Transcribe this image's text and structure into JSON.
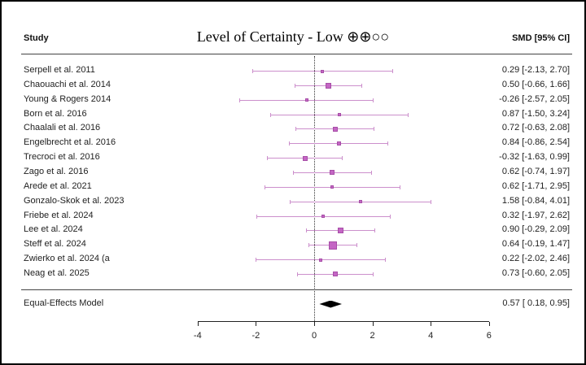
{
  "header": {
    "study_column_label": "Study",
    "title": "Level of Certainty - Low ⊕⊕○○",
    "effect_column_label": "SMD [95% CI]"
  },
  "chart_data": {
    "type": "forest",
    "title": "Level of Certainty - Low ⊕⊕○○",
    "effect_measure": "SMD [95% CI]",
    "xlim": [
      -4.3,
      6.3
    ],
    "x_ticks": [
      -4,
      -2,
      0,
      2,
      4,
      6
    ],
    "zero_reference_line": 0,
    "studies": [
      {
        "name": "Serpell et al. 2011",
        "smd": 0.29,
        "ci_low": -2.13,
        "ci_high": 2.7,
        "label": "0.29 [-2.13, 2.70]",
        "marker_px": 4
      },
      {
        "name": "Chaouachi et al. 2014",
        "smd": 0.5,
        "ci_low": -0.66,
        "ci_high": 1.66,
        "label": "0.50 [-0.66, 1.66]",
        "marker_px": 7
      },
      {
        "name": "Young & Rogers 2014",
        "smd": -0.26,
        "ci_low": -2.57,
        "ci_high": 2.05,
        "label": "-0.26 [-2.57, 2.05]",
        "marker_px": 4
      },
      {
        "name": "Born et al. 2016",
        "smd": 0.87,
        "ci_low": -1.5,
        "ci_high": 3.24,
        "label": "0.87 [-1.50, 3.24]",
        "marker_px": 4
      },
      {
        "name": "Chaalali et al. 2016",
        "smd": 0.72,
        "ci_low": -0.63,
        "ci_high": 2.08,
        "label": "0.72 [-0.63, 2.08]",
        "marker_px": 6
      },
      {
        "name": "Engelbrecht et al. 2016",
        "smd": 0.84,
        "ci_low": -0.86,
        "ci_high": 2.54,
        "label": "0.84 [-0.86, 2.54]",
        "marker_px": 5
      },
      {
        "name": "Trecroci et al. 2016",
        "smd": -0.32,
        "ci_low": -1.63,
        "ci_high": 0.99,
        "label": "-0.32 [-1.63, 0.99]",
        "marker_px": 6
      },
      {
        "name": "Zago et al. 2016",
        "smd": 0.62,
        "ci_low": -0.74,
        "ci_high": 1.97,
        "label": "0.62 [-0.74, 1.97]",
        "marker_px": 6
      },
      {
        "name": "Arede et al. 2021",
        "smd": 0.62,
        "ci_low": -1.71,
        "ci_high": 2.95,
        "label": "0.62 [-1.71, 2.95]",
        "marker_px": 4
      },
      {
        "name": "Gonzalo-Skok et al. 2023",
        "smd": 1.58,
        "ci_low": -0.84,
        "ci_high": 4.01,
        "label": "1.58 [-0.84, 4.01]",
        "marker_px": 4
      },
      {
        "name": "Friebe et al. 2024",
        "smd": 0.32,
        "ci_low": -1.97,
        "ci_high": 2.62,
        "label": "0.32 [-1.97, 2.62]",
        "marker_px": 4
      },
      {
        "name": "Lee et al. 2024",
        "smd": 0.9,
        "ci_low": -0.29,
        "ci_high": 2.09,
        "label": "0.90 [-0.29, 2.09]",
        "marker_px": 7
      },
      {
        "name": "Steff et al. 2024",
        "smd": 0.64,
        "ci_low": -0.19,
        "ci_high": 1.47,
        "label": "0.64 [-0.19, 1.47]",
        "marker_px": 10
      },
      {
        "name": "Zwierko et al. 2024 (a",
        "smd": 0.22,
        "ci_low": -2.02,
        "ci_high": 2.46,
        "label": "0.22 [-2.02, 2.46]",
        "marker_px": 4
      },
      {
        "name": "Neag et al. 2025",
        "smd": 0.73,
        "ci_low": -0.6,
        "ci_high": 2.05,
        "label": "0.73 [-0.60, 2.05]",
        "marker_px": 6
      }
    ],
    "summary": {
      "name": "Equal-Effects Model",
      "smd": 0.57,
      "ci_low": 0.18,
      "ci_high": 0.95,
      "label": "0.57 [ 0.18, 0.95]"
    },
    "colors": {
      "ci_line": "#cc8fcc",
      "marker_fill": "#c466c4",
      "marker_border": "#a74ea7",
      "summary_diamond": "#000000",
      "axis": "#222222",
      "zero_line": "#333333"
    }
  }
}
